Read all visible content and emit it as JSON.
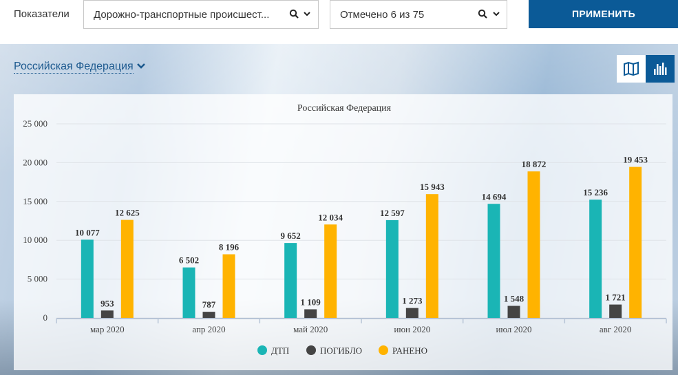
{
  "filters": {
    "label": "Показатели",
    "indicator_value": "Дорожно-транспортные происшест...",
    "regions_value": "Отмечено 6 из 75",
    "apply_label": "ПРИМЕНИТЬ"
  },
  "region": {
    "name": "Российская Федерация"
  },
  "colors": {
    "accent": "#0b5a97",
    "dtp": "#1ab5b5",
    "killed": "#444444",
    "injured": "#ffb300"
  },
  "icons": {
    "search": "search-icon",
    "dropdown": "chevron-down-icon",
    "map": "map-icon",
    "chart": "bar-chart-icon"
  },
  "chart_data": {
    "type": "bar",
    "title": "Российская Федерация",
    "categories": [
      "мар 2020",
      "апр 2020",
      "май 2020",
      "июн 2020",
      "июл 2020",
      "авг 2020"
    ],
    "series": [
      {
        "name": "ДТП",
        "values": [
          10077,
          6502,
          9652,
          12597,
          14694,
          15236
        ]
      },
      {
        "name": "ПОГИБЛО",
        "values": [
          953,
          787,
          1109,
          1273,
          1548,
          1721
        ]
      },
      {
        "name": "РАНЕНО",
        "values": [
          12625,
          8196,
          12034,
          15943,
          18872,
          19453
        ]
      }
    ],
    "value_labels": [
      [
        "10 077",
        "6 502",
        "9 652",
        "12 597",
        "14 694",
        "15 236"
      ],
      [
        "953",
        "787",
        "1 109",
        "1 273",
        "1 548",
        "1 721"
      ],
      [
        "12 625",
        "8 196",
        "12 034",
        "15 943",
        "18 872",
        "19 453"
      ]
    ],
    "yticks": [
      0,
      5000,
      10000,
      15000,
      20000,
      25000
    ],
    "ytick_labels": [
      "0",
      "5 000",
      "10 000",
      "15 000",
      "20 000",
      "25 000"
    ],
    "ylim": [
      0,
      25000
    ],
    "grid": true,
    "legend_position": "bottom-center"
  }
}
